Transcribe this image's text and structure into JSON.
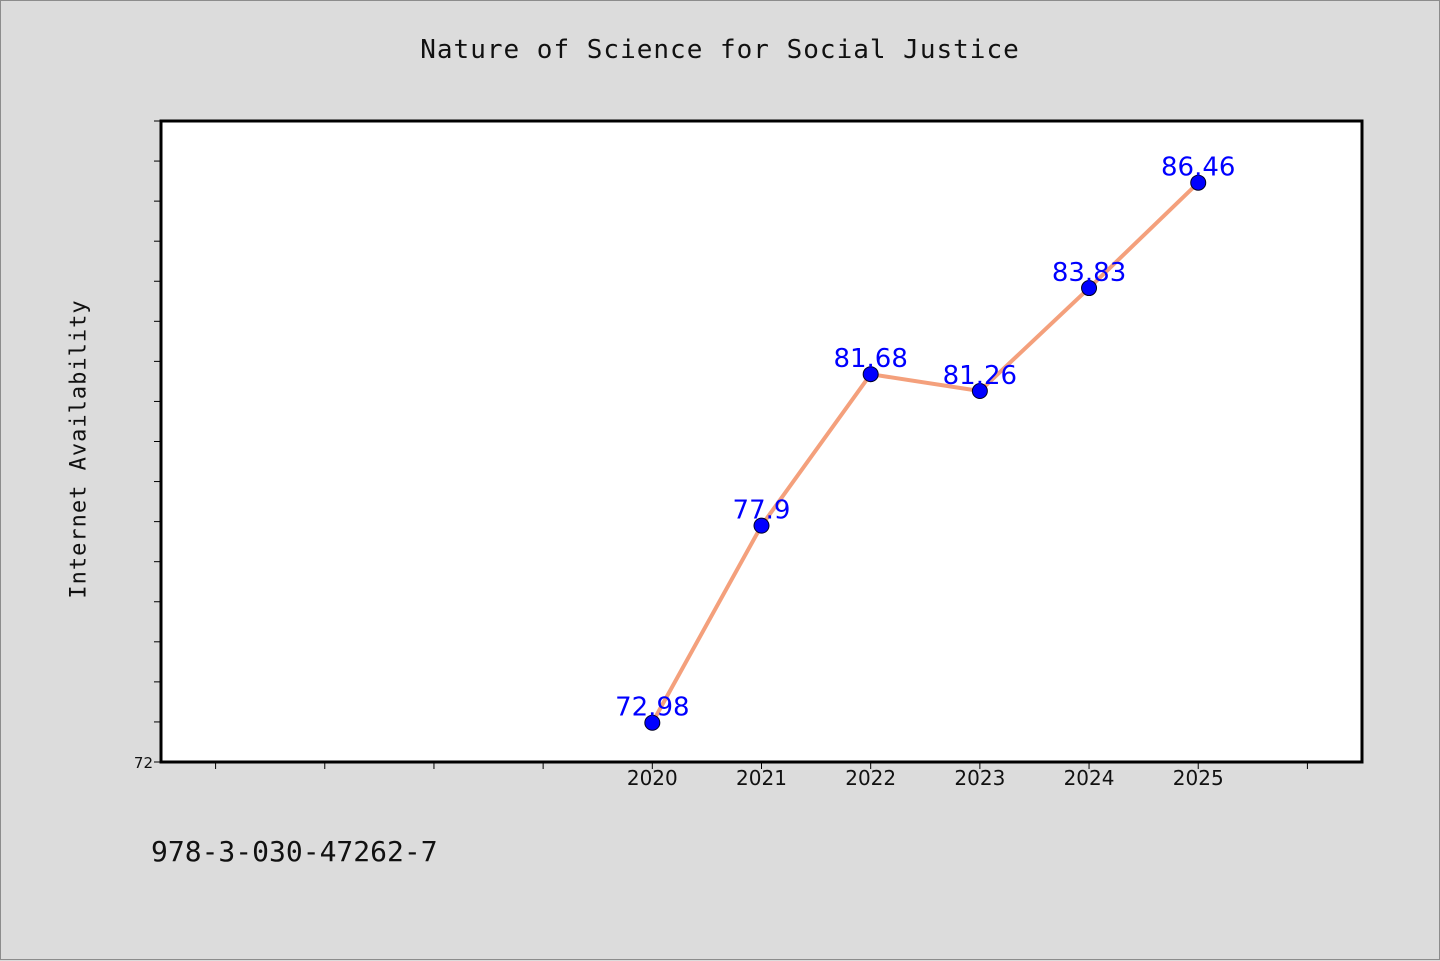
{
  "figure": {
    "background": "#dcdcdc",
    "footer_text": "978-3-030-47262-7"
  },
  "chart_data": {
    "type": "line",
    "title": "Nature of Science for Social Justice",
    "xlabel": "",
    "ylabel": "Internet Availability",
    "x": [
      "2020",
      "2021",
      "2022",
      "2023",
      "2024",
      "2025"
    ],
    "series": [
      {
        "values": [
          72.98,
          77.9,
          81.68,
          81.26,
          83.83,
          86.46
        ],
        "data_labels": [
          "72.98",
          "77.9",
          "81.68",
          "81.26",
          "83.83",
          "86.46"
        ],
        "line_color": "#f4a07c",
        "marker_color": "#0000ff",
        "label_color": "#0000ff"
      }
    ],
    "xlim": [
      2015.5,
      2026.5
    ],
    "ylim": [
      72,
      88
    ],
    "ytick_labels": [
      "72"
    ],
    "xtick_labels": [
      "2020",
      "2021",
      "2022",
      "2023",
      "2024",
      "2025"
    ],
    "grid": false,
    "legend": false,
    "plot_background": "#ffffff"
  }
}
